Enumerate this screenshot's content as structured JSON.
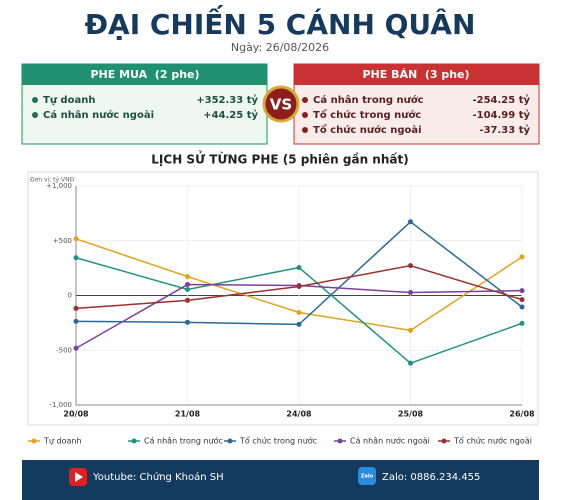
{
  "header": {
    "title": "ĐẠI CHIẾN 5 CÁNH QUÂN",
    "date": "Ngày: 26/08/2026"
  },
  "buy_panel": {
    "title": "PHE MUA  (2 phe)",
    "items": [
      {
        "label": "Tự doanh",
        "value": "+352.33 tỷ"
      },
      {
        "label": "Cá nhân nước ngoài",
        "value": "+44.25 tỷ"
      }
    ]
  },
  "vs": "VS",
  "sell_panel": {
    "title": "PHE BÁN  (3 phe)",
    "items": [
      {
        "label": "Cá nhân trong nước",
        "value": "-254.25 tỷ"
      },
      {
        "label": "Tổ chức trong nước",
        "value": "-104.99 tỷ"
      },
      {
        "label": "Tổ chức nước ngoài",
        "value": "-37.33 tỷ"
      }
    ]
  },
  "chart_data": {
    "type": "line",
    "title": "LỊCH SỬ TỪNG PHE (5 phiên gần nhất)",
    "unit_label": "Đơn vị: tỷ VNĐ",
    "categories": [
      "20/08",
      "21/08",
      "24/08",
      "25/08",
      "26/08"
    ],
    "series": [
      {
        "name": "Tự doanh",
        "color": "#e3a21a",
        "values": [
          518,
          173,
          -155,
          -318,
          352.33
        ]
      },
      {
        "name": "Cá nhân trong nước",
        "color": "#1f9383",
        "values": [
          345,
          55,
          255,
          -618,
          -254.25
        ]
      },
      {
        "name": "Tổ chức trong nước",
        "color": "#2b6a96",
        "values": [
          -236,
          -245,
          -264,
          673,
          -104.99
        ]
      },
      {
        "name": "Cá nhân nước ngoài",
        "color": "#7d3f9c",
        "values": [
          -482,
          100,
          91,
          27,
          44.25
        ]
      },
      {
        "name": "Tổ chức nước ngoài",
        "color": "#9c2f2f",
        "values": [
          -118,
          -45,
          82,
          273,
          -37.33
        ]
      }
    ],
    "ylim": [
      -1000,
      1000
    ],
    "yticks": [
      {
        "value": -1000,
        "label": "-1,000"
      },
      {
        "value": -500,
        "label": "-500"
      },
      0,
      {
        "value": 500,
        "label": "+500"
      },
      {
        "value": 1000,
        "label": "+1,000"
      }
    ],
    "grid": true
  },
  "footer": {
    "youtube": "Youtube: Chứng Khoán SH",
    "zalo_icon": "Zalo",
    "zalo": "Zalo: 0886.234.455"
  }
}
